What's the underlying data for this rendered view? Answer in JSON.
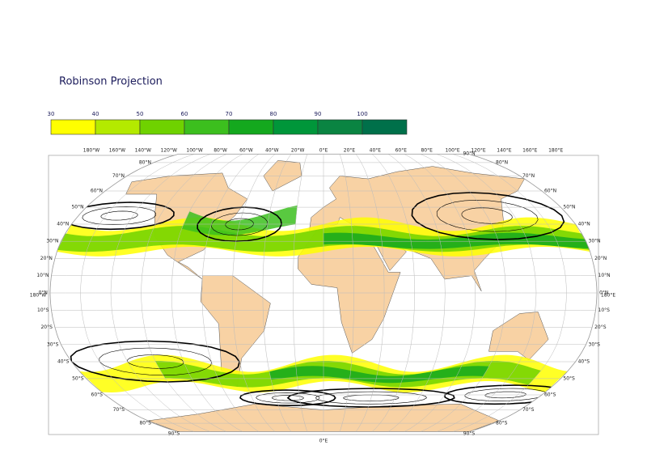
{
  "title": "Robinson Projection",
  "colorbar": {
    "ticks": [
      30,
      40,
      50,
      60,
      70,
      80,
      90,
      100
    ],
    "colors": [
      "#ffff00",
      "#b4ea00",
      "#6fd200",
      "#3cbf1e",
      "#14a81e",
      "#00963a",
      "#0a8442",
      "#00704a"
    ]
  },
  "lon_labels": [
    "180°W",
    "160°W",
    "140°W",
    "120°W",
    "100°W",
    "80°W",
    "60°W",
    "40°W",
    "20°W",
    "0°E",
    "20°E",
    "40°E",
    "60°E",
    "80°E",
    "100°E",
    "120°E",
    "140°E",
    "160°E",
    "180°E"
  ],
  "lat_labels": [
    "80°N",
    "70°N",
    "60°N",
    "50°N",
    "40°N",
    "30°N",
    "20°N",
    "10°N",
    "0°N",
    "10°S",
    "20°S",
    "30°S",
    "40°S",
    "50°S",
    "60°S",
    "70°S",
    "80°S"
  ],
  "pole_labels": [
    "90°N",
    "90°S"
  ]
}
